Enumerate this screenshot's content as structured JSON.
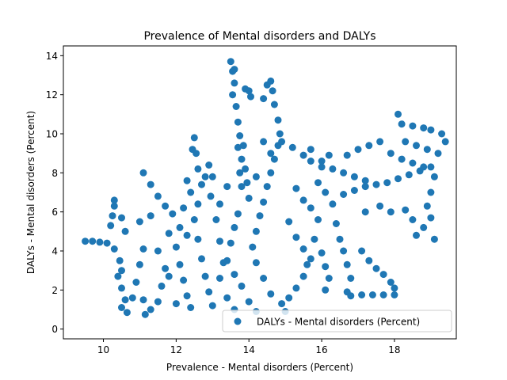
{
  "chart_data": {
    "type": "scatter",
    "title": "Prevalence of Mental disorders and DALYs",
    "xlabel": "Prevalence - Mental disorders (Percent)",
    "ylabel": "DALYs - Mental disorders (Percent)",
    "xlim": [
      8.9,
      19.7
    ],
    "ylim": [
      -0.5,
      14.5
    ],
    "xticks": [
      10,
      12,
      14,
      16,
      18
    ],
    "yticks": [
      0,
      2,
      4,
      6,
      8,
      10,
      12,
      14
    ],
    "grid": false,
    "legend_position": "lower-right",
    "marker_color": "#1f77b4",
    "series": [
      {
        "name": "DALYs - Mental disorders (Percent)",
        "points": [
          [
            9.5,
            4.5
          ],
          [
            9.7,
            4.5
          ],
          [
            9.9,
            4.45
          ],
          [
            10.1,
            4.4
          ],
          [
            10.3,
            4.1
          ],
          [
            10.45,
            3.5
          ],
          [
            10.5,
            3.0
          ],
          [
            10.2,
            5.3
          ],
          [
            10.25,
            5.8
          ],
          [
            10.3,
            6.3
          ],
          [
            10.3,
            6.6
          ],
          [
            10.5,
            5.7
          ],
          [
            10.6,
            5.0
          ],
          [
            10.4,
            2.7
          ],
          [
            10.5,
            2.1
          ],
          [
            10.6,
            1.5
          ],
          [
            10.5,
            1.1
          ],
          [
            10.65,
            0.85
          ],
          [
            10.8,
            1.6
          ],
          [
            10.9,
            2.4
          ],
          [
            11.0,
            3.3
          ],
          [
            11.1,
            4.1
          ],
          [
            11.0,
            5.5
          ],
          [
            11.3,
            5.8
          ],
          [
            11.1,
            1.5
          ],
          [
            11.15,
            0.75
          ],
          [
            11.3,
            1.0
          ],
          [
            11.5,
            1.4
          ],
          [
            11.6,
            2.2
          ],
          [
            11.7,
            3.1
          ],
          [
            11.5,
            4.0
          ],
          [
            11.1,
            8.0
          ],
          [
            11.3,
            7.4
          ],
          [
            11.5,
            6.8
          ],
          [
            11.7,
            6.3
          ],
          [
            11.9,
            5.9
          ],
          [
            11.8,
            4.9
          ],
          [
            12.0,
            4.2
          ],
          [
            12.1,
            3.3
          ],
          [
            12.2,
            2.5
          ],
          [
            12.3,
            1.7
          ],
          [
            12.4,
            1.1
          ],
          [
            12.0,
            1.3
          ],
          [
            11.8,
            2.7
          ],
          [
            12.1,
            5.2
          ],
          [
            12.3,
            4.8
          ],
          [
            12.2,
            6.2
          ],
          [
            12.4,
            7.0
          ],
          [
            12.3,
            7.6
          ],
          [
            12.45,
            9.2
          ],
          [
            12.5,
            9.8
          ],
          [
            12.55,
            9.0
          ],
          [
            12.6,
            8.2
          ],
          [
            12.7,
            7.4
          ],
          [
            12.6,
            6.4
          ],
          [
            12.5,
            5.6
          ],
          [
            12.6,
            4.6
          ],
          [
            12.7,
            3.6
          ],
          [
            12.8,
            2.7
          ],
          [
            12.9,
            1.9
          ],
          [
            13.0,
            1.2
          ],
          [
            12.8,
            7.8
          ],
          [
            12.9,
            8.4
          ],
          [
            13.0,
            7.8
          ],
          [
            12.95,
            6.8
          ],
          [
            13.1,
            5.6
          ],
          [
            13.2,
            4.5
          ],
          [
            13.3,
            3.4
          ],
          [
            13.2,
            2.6
          ],
          [
            13.4,
            1.6
          ],
          [
            13.6,
            1.0
          ],
          [
            13.2,
            6.4
          ],
          [
            13.4,
            7.3
          ],
          [
            13.5,
            13.7
          ],
          [
            13.55,
            13.2
          ],
          [
            13.6,
            12.6
          ],
          [
            13.55,
            12.0
          ],
          [
            13.65,
            11.4
          ],
          [
            13.7,
            10.6
          ],
          [
            13.75,
            9.9
          ],
          [
            13.7,
            9.3
          ],
          [
            13.8,
            8.7
          ],
          [
            13.75,
            8.0
          ],
          [
            13.8,
            7.3
          ],
          [
            13.85,
            9.4
          ],
          [
            13.9,
            8.2
          ],
          [
            13.95,
            7.5
          ],
          [
            14.0,
            6.7
          ],
          [
            13.7,
            5.9
          ],
          [
            13.6,
            5.2
          ],
          [
            13.5,
            4.4
          ],
          [
            13.4,
            3.5
          ],
          [
            13.6,
            2.8
          ],
          [
            13.8,
            2.2
          ],
          [
            14.0,
            1.4
          ],
          [
            14.2,
            0.9
          ],
          [
            13.9,
            12.3
          ],
          [
            14.0,
            12.2
          ],
          [
            14.05,
            11.9
          ],
          [
            13.6,
            13.3
          ],
          [
            14.5,
            12.5
          ],
          [
            14.6,
            12.7
          ],
          [
            14.65,
            12.2
          ],
          [
            14.7,
            11.5
          ],
          [
            14.8,
            10.7
          ],
          [
            14.85,
            10.0
          ],
          [
            14.8,
            9.4
          ],
          [
            14.7,
            8.7
          ],
          [
            14.6,
            8.0
          ],
          [
            14.5,
            7.3
          ],
          [
            14.4,
            6.5
          ],
          [
            14.3,
            5.8
          ],
          [
            14.2,
            5.0
          ],
          [
            14.1,
            4.2
          ],
          [
            14.2,
            3.4
          ],
          [
            14.4,
            2.6
          ],
          [
            14.6,
            1.8
          ],
          [
            14.9,
            1.3
          ],
          [
            15.1,
            1.6
          ],
          [
            15.3,
            2.1
          ],
          [
            15.5,
            2.7
          ],
          [
            15.6,
            3.3
          ],
          [
            15.0,
            0.9
          ],
          [
            14.4,
            11.8
          ],
          [
            14.2,
            7.8
          ],
          [
            14.4,
            9.6
          ],
          [
            14.6,
            9.0
          ],
          [
            14.9,
            9.6
          ],
          [
            15.2,
            9.3
          ],
          [
            15.5,
            8.9
          ],
          [
            15.7,
            8.6
          ],
          [
            15.3,
            7.2
          ],
          [
            15.5,
            6.6
          ],
          [
            15.7,
            6.2
          ],
          [
            15.9,
            5.6
          ],
          [
            15.1,
            5.5
          ],
          [
            15.3,
            4.7
          ],
          [
            15.5,
            4.1
          ],
          [
            15.7,
            3.6
          ],
          [
            15.8,
            4.6
          ],
          [
            16.0,
            3.9
          ],
          [
            16.1,
            3.2
          ],
          [
            16.2,
            2.6
          ],
          [
            16.1,
            2.0
          ],
          [
            15.9,
            7.5
          ],
          [
            16.1,
            7.0
          ],
          [
            16.3,
            6.4
          ],
          [
            16.0,
            8.3
          ],
          [
            16.3,
            8.2
          ],
          [
            16.6,
            8.0
          ],
          [
            16.9,
            7.8
          ],
          [
            17.2,
            7.6
          ],
          [
            17.5,
            7.4
          ],
          [
            17.8,
            7.5
          ],
          [
            18.1,
            7.7
          ],
          [
            18.4,
            7.9
          ],
          [
            18.7,
            8.1
          ],
          [
            19.0,
            8.3
          ],
          [
            16.6,
            6.9
          ],
          [
            16.9,
            7.1
          ],
          [
            17.2,
            7.3
          ],
          [
            16.4,
            5.4
          ],
          [
            16.5,
            4.6
          ],
          [
            16.6,
            4.0
          ],
          [
            16.7,
            3.3
          ],
          [
            16.8,
            2.6
          ],
          [
            16.7,
            1.9
          ],
          [
            16.8,
            1.7
          ],
          [
            17.1,
            1.75
          ],
          [
            17.4,
            1.75
          ],
          [
            17.7,
            1.75
          ],
          [
            18.0,
            1.75
          ],
          [
            17.1,
            4.0
          ],
          [
            17.3,
            3.5
          ],
          [
            17.5,
            3.1
          ],
          [
            17.7,
            2.8
          ],
          [
            17.9,
            2.4
          ],
          [
            18.0,
            2.1
          ],
          [
            18.1,
            11.0
          ],
          [
            18.2,
            10.5
          ],
          [
            18.5,
            10.4
          ],
          [
            18.8,
            10.3
          ],
          [
            19.0,
            10.2
          ],
          [
            19.3,
            10.0
          ],
          [
            18.3,
            9.6
          ],
          [
            18.6,
            9.4
          ],
          [
            18.9,
            9.2
          ],
          [
            19.2,
            9.0
          ],
          [
            19.4,
            9.6
          ],
          [
            17.6,
            9.6
          ],
          [
            17.3,
            9.4
          ],
          [
            17.0,
            9.2
          ],
          [
            16.7,
            8.9
          ],
          [
            17.9,
            9.0
          ],
          [
            18.2,
            8.7
          ],
          [
            18.5,
            8.5
          ],
          [
            18.8,
            8.3
          ],
          [
            19.1,
            7.8
          ],
          [
            19.0,
            7.0
          ],
          [
            18.9,
            6.3
          ],
          [
            19.0,
            5.7
          ],
          [
            18.8,
            5.2
          ],
          [
            18.6,
            4.8
          ],
          [
            19.1,
            4.6
          ],
          [
            17.2,
            6.0
          ],
          [
            17.6,
            6.3
          ],
          [
            17.9,
            6.0
          ],
          [
            18.3,
            6.1
          ],
          [
            18.5,
            5.6
          ],
          [
            16.2,
            8.9
          ],
          [
            16.0,
            8.6
          ],
          [
            15.7,
            9.2
          ]
        ]
      }
    ]
  }
}
